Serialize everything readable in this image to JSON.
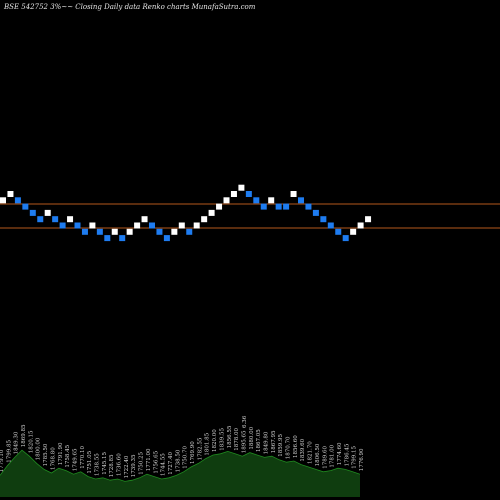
{
  "chart_data": {
    "type": "renko",
    "title": "BSE 542752  3%~~ Closing Daily data  Renko  charts MunafaSutra.com",
    "colors": {
      "background": "#000000",
      "up_brick": "#ffffff",
      "down_brick": "#1e7cf0",
      "level_line": "#b5581c",
      "volume_fill": "#0f3d0f",
      "volume_line": "#1f8a1f"
    },
    "levels": [
      204,
      228
    ],
    "bricks": [
      {
        "dir": "up",
        "level": 4
      },
      {
        "dir": "up",
        "level": 5
      },
      {
        "dir": "down",
        "level": 4
      },
      {
        "dir": "down",
        "level": 3
      },
      {
        "dir": "down",
        "level": 2
      },
      {
        "dir": "down",
        "level": 1
      },
      {
        "dir": "up",
        "level": 2
      },
      {
        "dir": "down",
        "level": 1
      },
      {
        "dir": "down",
        "level": 0
      },
      {
        "dir": "up",
        "level": 1
      },
      {
        "dir": "down",
        "level": 0
      },
      {
        "dir": "down",
        "level": -1
      },
      {
        "dir": "up",
        "level": 0
      },
      {
        "dir": "down",
        "level": -1
      },
      {
        "dir": "down",
        "level": -2
      },
      {
        "dir": "up",
        "level": -1
      },
      {
        "dir": "down",
        "level": -2
      },
      {
        "dir": "up",
        "level": -1
      },
      {
        "dir": "up",
        "level": 0
      },
      {
        "dir": "up",
        "level": 1
      },
      {
        "dir": "down",
        "level": 0
      },
      {
        "dir": "down",
        "level": -1
      },
      {
        "dir": "down",
        "level": -2
      },
      {
        "dir": "up",
        "level": -1
      },
      {
        "dir": "up",
        "level": 0
      },
      {
        "dir": "down",
        "level": -1
      },
      {
        "dir": "up",
        "level": 0
      },
      {
        "dir": "up",
        "level": 1
      },
      {
        "dir": "up",
        "level": 2
      },
      {
        "dir": "up",
        "level": 3
      },
      {
        "dir": "up",
        "level": 4
      },
      {
        "dir": "up",
        "level": 5
      },
      {
        "dir": "up",
        "level": 6
      },
      {
        "dir": "down",
        "level": 5
      },
      {
        "dir": "down",
        "level": 4
      },
      {
        "dir": "down",
        "level": 3
      },
      {
        "dir": "up",
        "level": 4
      },
      {
        "dir": "down",
        "level": 3
      },
      {
        "dir": "down",
        "level": 3
      },
      {
        "dir": "up",
        "level": 5
      },
      {
        "dir": "down",
        "level": 4
      },
      {
        "dir": "down",
        "level": 3
      },
      {
        "dir": "down",
        "level": 2
      },
      {
        "dir": "down",
        "level": 1
      },
      {
        "dir": "down",
        "level": 0
      },
      {
        "dir": "down",
        "level": -1
      },
      {
        "dir": "down",
        "level": -2
      },
      {
        "dir": "up",
        "level": -1
      },
      {
        "dir": "up",
        "level": 0
      },
      {
        "dir": "up",
        "level": 1
      }
    ],
    "volume_labels": [
      "1779.10",
      "1799.85",
      "1849.30",
      "1869.85",
      "1820.15",
      "1800.00",
      "1785.50",
      "1768.80",
      "1791.90",
      "1758.45",
      "1749.65",
      "1770.10",
      "1751.05",
      "1738.55",
      "1745.15",
      "1728.85",
      "1736.60",
      "1722.40",
      "1739.35",
      "1750.25",
      "1771.00",
      "1756.65",
      "1744.55",
      "1727.40",
      "1738.50",
      "1750.70",
      "1769.90",
      "1782.55",
      "1801.85",
      "1820.00",
      "1839.55",
      "1856.55",
      "1878.00",
      "1895.65",
      "1880.00",
      "1867.05",
      "1849.80",
      "1867.95",
      "1859.95",
      "1870.70",
      "1856.60",
      "1839.60",
      "1821.70",
      "1806.50",
      "1789.60",
      "1781.00",
      "1774.60",
      "1786.45",
      "1799.15",
      "1776.90"
    ],
    "volume_values": [
      0.18,
      0.26,
      0.33,
      0.39,
      0.34,
      0.28,
      0.23,
      0.2,
      0.24,
      0.22,
      0.19,
      0.21,
      0.17,
      0.15,
      0.16,
      0.14,
      0.15,
      0.13,
      0.14,
      0.16,
      0.19,
      0.17,
      0.15,
      0.16,
      0.18,
      0.21,
      0.25,
      0.28,
      0.32,
      0.35,
      0.36,
      0.38,
      0.36,
      0.34,
      0.37,
      0.35,
      0.33,
      0.34,
      0.31,
      0.29,
      0.3,
      0.27,
      0.25,
      0.23,
      0.21,
      0.22,
      0.24,
      0.23,
      0.21,
      0.19
    ],
    "annotation": "6.36"
  }
}
